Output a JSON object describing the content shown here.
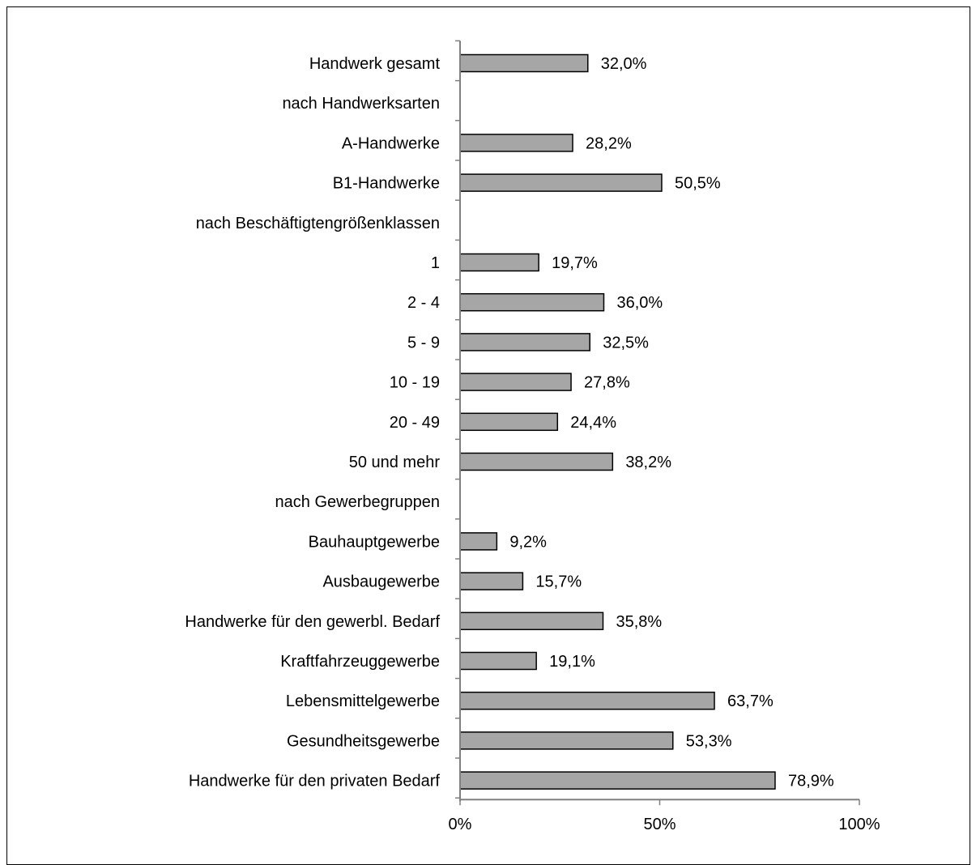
{
  "colors": {
    "bar_fill": "#a6a6a6",
    "bar_stroke": "#000000",
    "axis": "#808080"
  },
  "chart_data": {
    "type": "bar",
    "orientation": "horizontal",
    "title": "",
    "xlabel": "",
    "ylabel": "",
    "xlim": [
      0,
      100
    ],
    "grid": false,
    "legend": "none",
    "categories": [
      "Handwerk gesamt",
      "nach Handwerksarten",
      "A-Handwerke",
      "B1-Handwerke",
      "nach Beschäftigtengrößenklassen",
      "1",
      "2 - 4",
      "5 - 9",
      "10 - 19",
      "20 - 49",
      "50 und mehr",
      "nach Gewerbegruppen",
      "Bauhauptgewerbe",
      "Ausbaugewerbe",
      "Handwerke für den gewerbl. Bedarf",
      "Kraftfahrzeuggewerbe",
      "Lebensmittelgewerbe",
      "Gesundheitsgewerbe",
      "Handwerke für den privaten Bedarf"
    ],
    "values": [
      32.0,
      null,
      28.2,
      50.5,
      null,
      19.7,
      36.0,
      32.5,
      27.8,
      24.4,
      38.2,
      null,
      9.2,
      15.7,
      35.8,
      19.1,
      63.7,
      53.3,
      78.9
    ],
    "value_labels": [
      "32,0%",
      "",
      "28,2%",
      "50,5%",
      "",
      "19,7%",
      "36,0%",
      "32,5%",
      "27,8%",
      "24,4%",
      "38,2%",
      "",
      "9,2%",
      "15,7%",
      "35,8%",
      "19,1%",
      "63,7%",
      "53,3%",
      "78,9%"
    ],
    "x_ticks": [
      0,
      50,
      100
    ],
    "x_tick_labels": [
      "0%",
      "50%",
      "100%"
    ]
  }
}
